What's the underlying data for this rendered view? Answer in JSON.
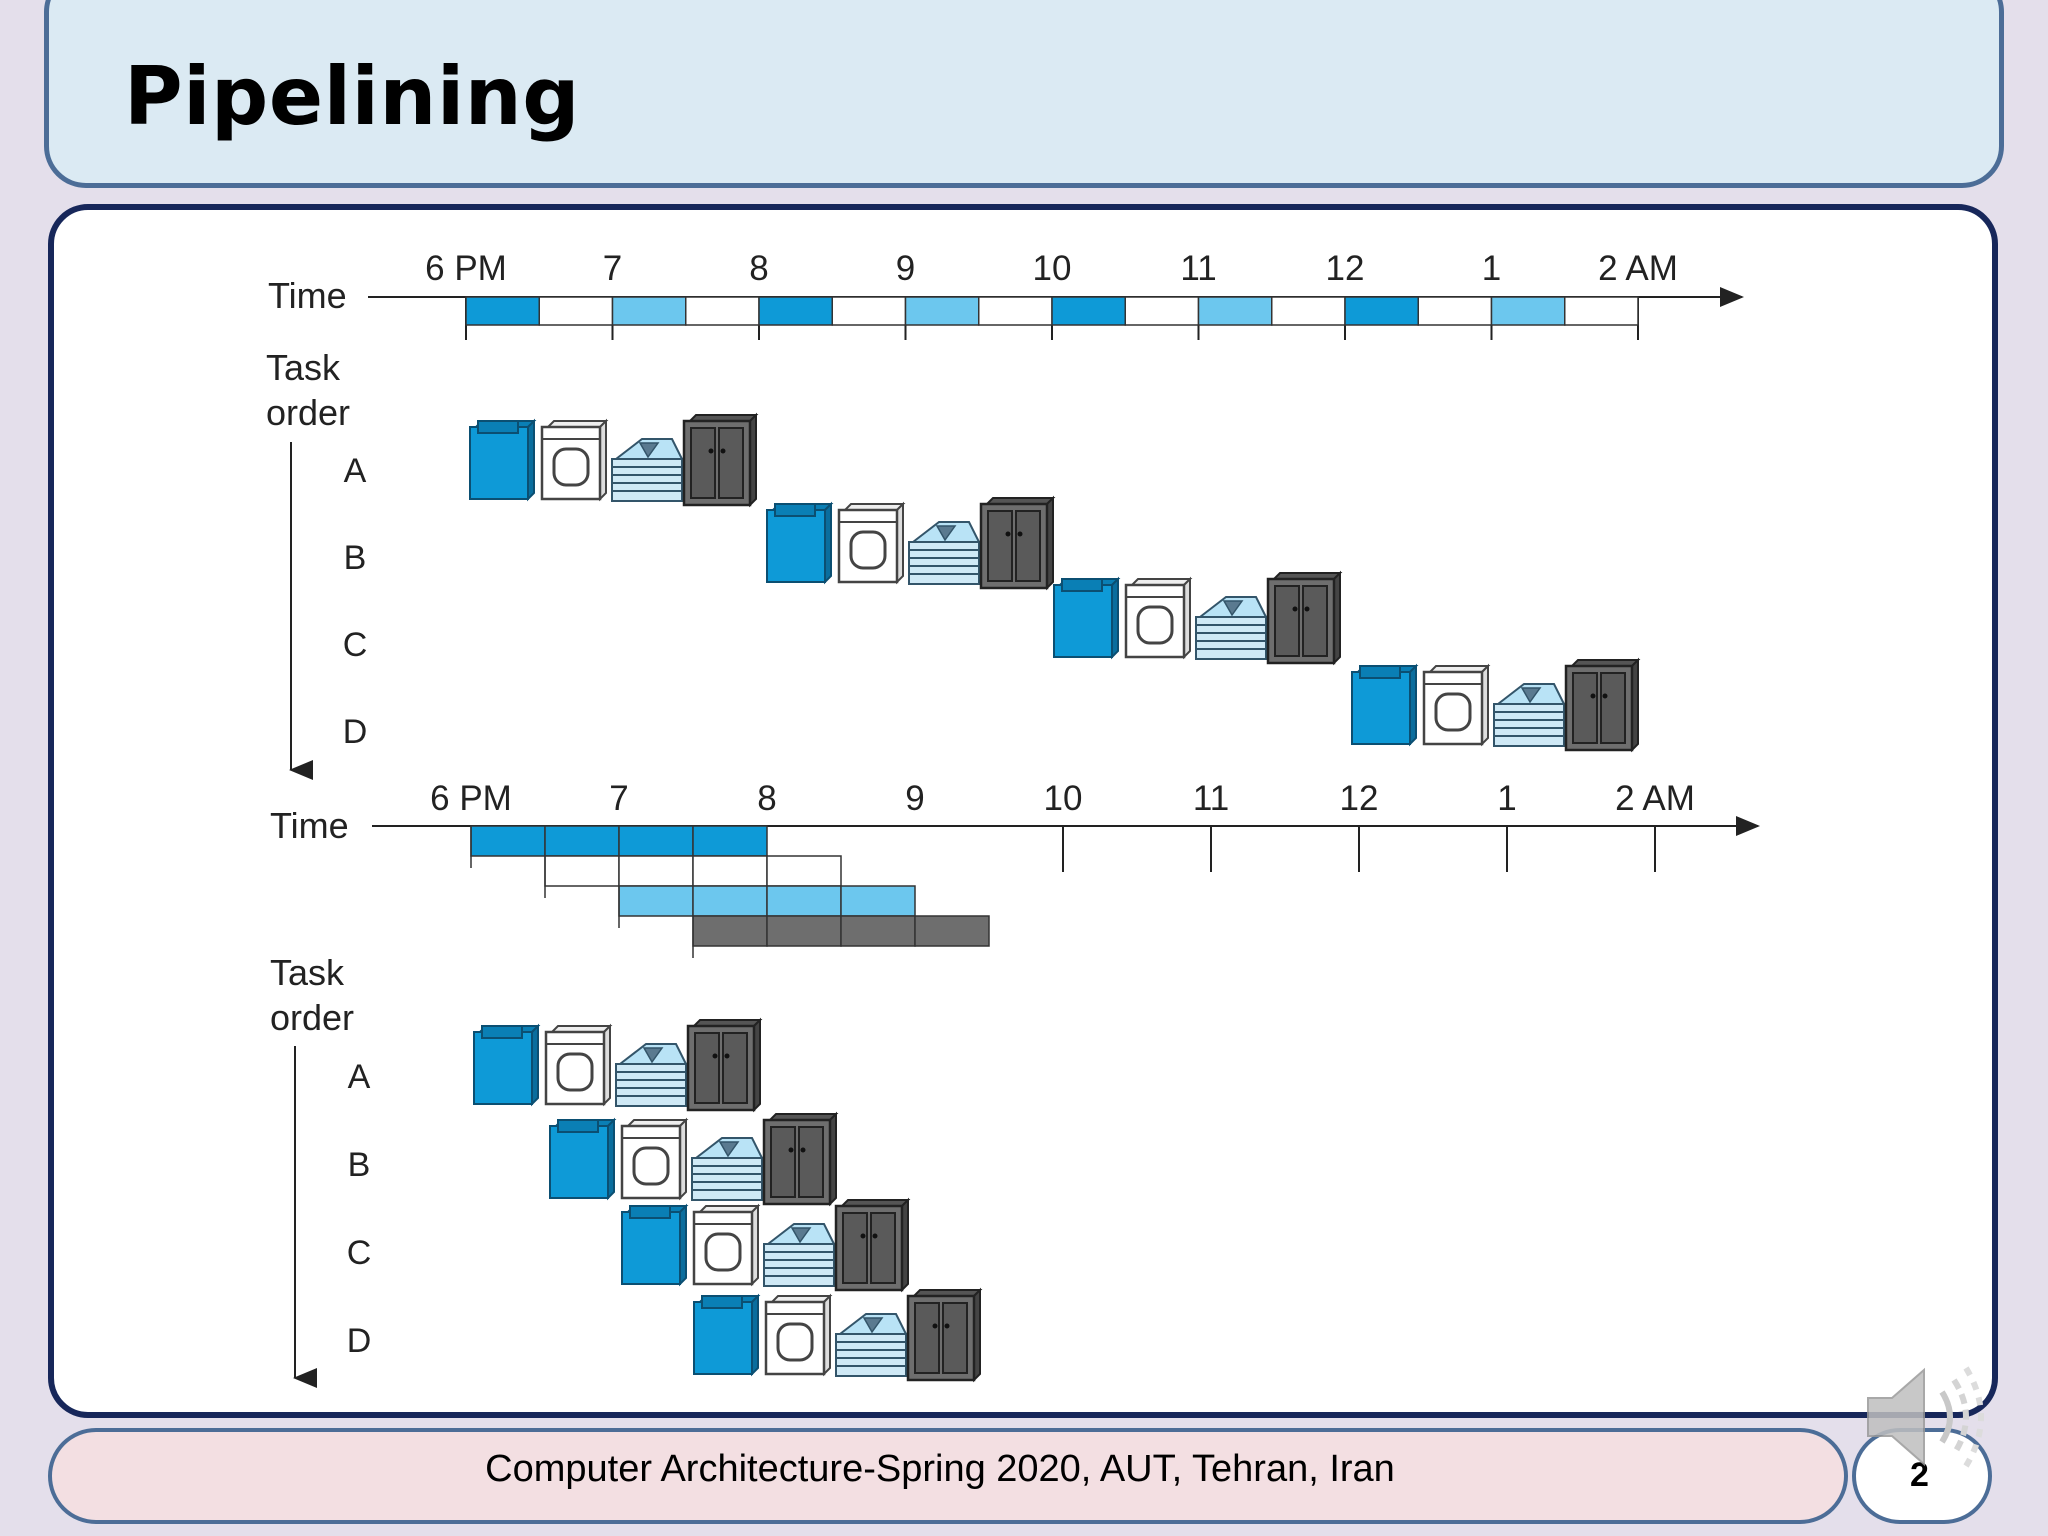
{
  "slide": {
    "title": "Pipelining",
    "footer": "Computer Architecture-Spring 2020, AUT, Tehran, Iran",
    "page_number": "2"
  },
  "diagram": {
    "time_label": "Time",
    "task_order_label_line1": "Task",
    "task_order_label_line2": "order",
    "time_ticks": [
      "6 PM",
      "7",
      "8",
      "9",
      "10",
      "11",
      "12",
      "1",
      "2 AM"
    ],
    "tasks": [
      "A",
      "B",
      "C",
      "D"
    ],
    "stages": [
      "washer-icon",
      "dryer-icon",
      "folding-icon",
      "closet-icon"
    ]
  },
  "colors": {
    "washer_blue": "#0e9ad7",
    "dryer_light_blue": "#6cc7ee",
    "closet_gray": "#6e6e6e",
    "title_bar_bg": "#dbeaf3",
    "footer_bg": "#f3dfe2",
    "panel_border": "#17275a"
  }
}
